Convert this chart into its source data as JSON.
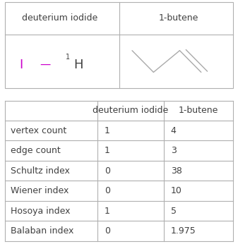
{
  "title_row": [
    "deuterium iodide",
    "1-butene"
  ],
  "row_labels": [
    "vertex count",
    "edge count",
    "Schultz index",
    "Wiener index",
    "Hosoya index",
    "Balaban index"
  ],
  "col1_values": [
    "1",
    "1",
    "0",
    "0",
    "1",
    "0"
  ],
  "col2_values": [
    "4",
    "3",
    "38",
    "10",
    "5",
    "1.975"
  ],
  "border_color": "#b0b0b0",
  "header_text_color": "#404040",
  "cell_text_color": "#404040",
  "background_color": "#ffffff",
  "iodide_color": "#cc00cc",
  "structure_color": "#aaaaaa",
  "font_size_title": 9,
  "font_size_cell": 9
}
